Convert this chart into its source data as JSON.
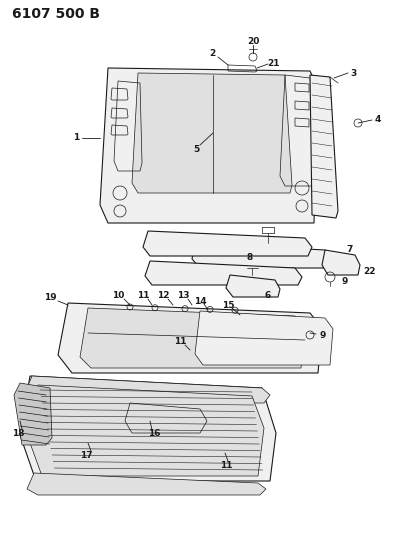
{
  "title": "6107 500 B",
  "bg_color": "#ffffff",
  "line_color": "#1a1a1a",
  "fill_light": "#f0f0f0",
  "fill_mid": "#e0e0e0",
  "fill_dark": "#c8c8c8",
  "title_fontsize": 10,
  "label_fontsize": 6.5,
  "fig_width": 4.1,
  "fig_height": 5.33,
  "dpi": 100
}
